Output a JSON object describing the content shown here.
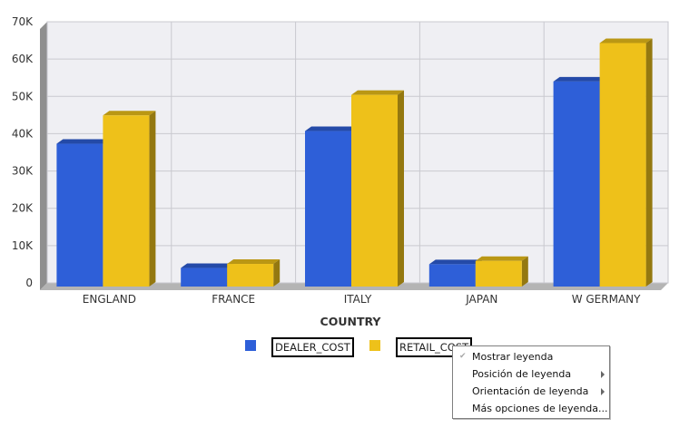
{
  "chart_data": {
    "type": "bar",
    "categories": [
      "ENGLAND",
      "FRANCE",
      "ITALY",
      "JAPAN",
      "W GERMANY"
    ],
    "series": [
      {
        "name": "DEALER_COST",
        "color": "#2e5fd8",
        "values": [
          37300,
          4000,
          40700,
          5000,
          54000
        ]
      },
      {
        "name": "RETAIL_COST",
        "color": "#eec11a",
        "values": [
          44900,
          5100,
          50400,
          5900,
          64300
        ]
      }
    ],
    "xlabel": "COUNTRY",
    "ylabel": "",
    "ylim": [
      0,
      70000
    ],
    "yticks": [
      "0",
      "10K",
      "20K",
      "30K",
      "40K",
      "50K",
      "60K",
      "70K"
    ],
    "grid": true,
    "legend_position": "bottom"
  },
  "context_menu": {
    "items": [
      {
        "label": "Mostrar leyenda",
        "checked": true,
        "submenu": false
      },
      {
        "label": "Posición de leyenda",
        "checked": false,
        "submenu": true
      },
      {
        "label": "Orientación de leyenda",
        "checked": false,
        "submenu": true
      },
      {
        "label": "Más opciones de leyenda...",
        "checked": false,
        "submenu": false
      }
    ]
  }
}
